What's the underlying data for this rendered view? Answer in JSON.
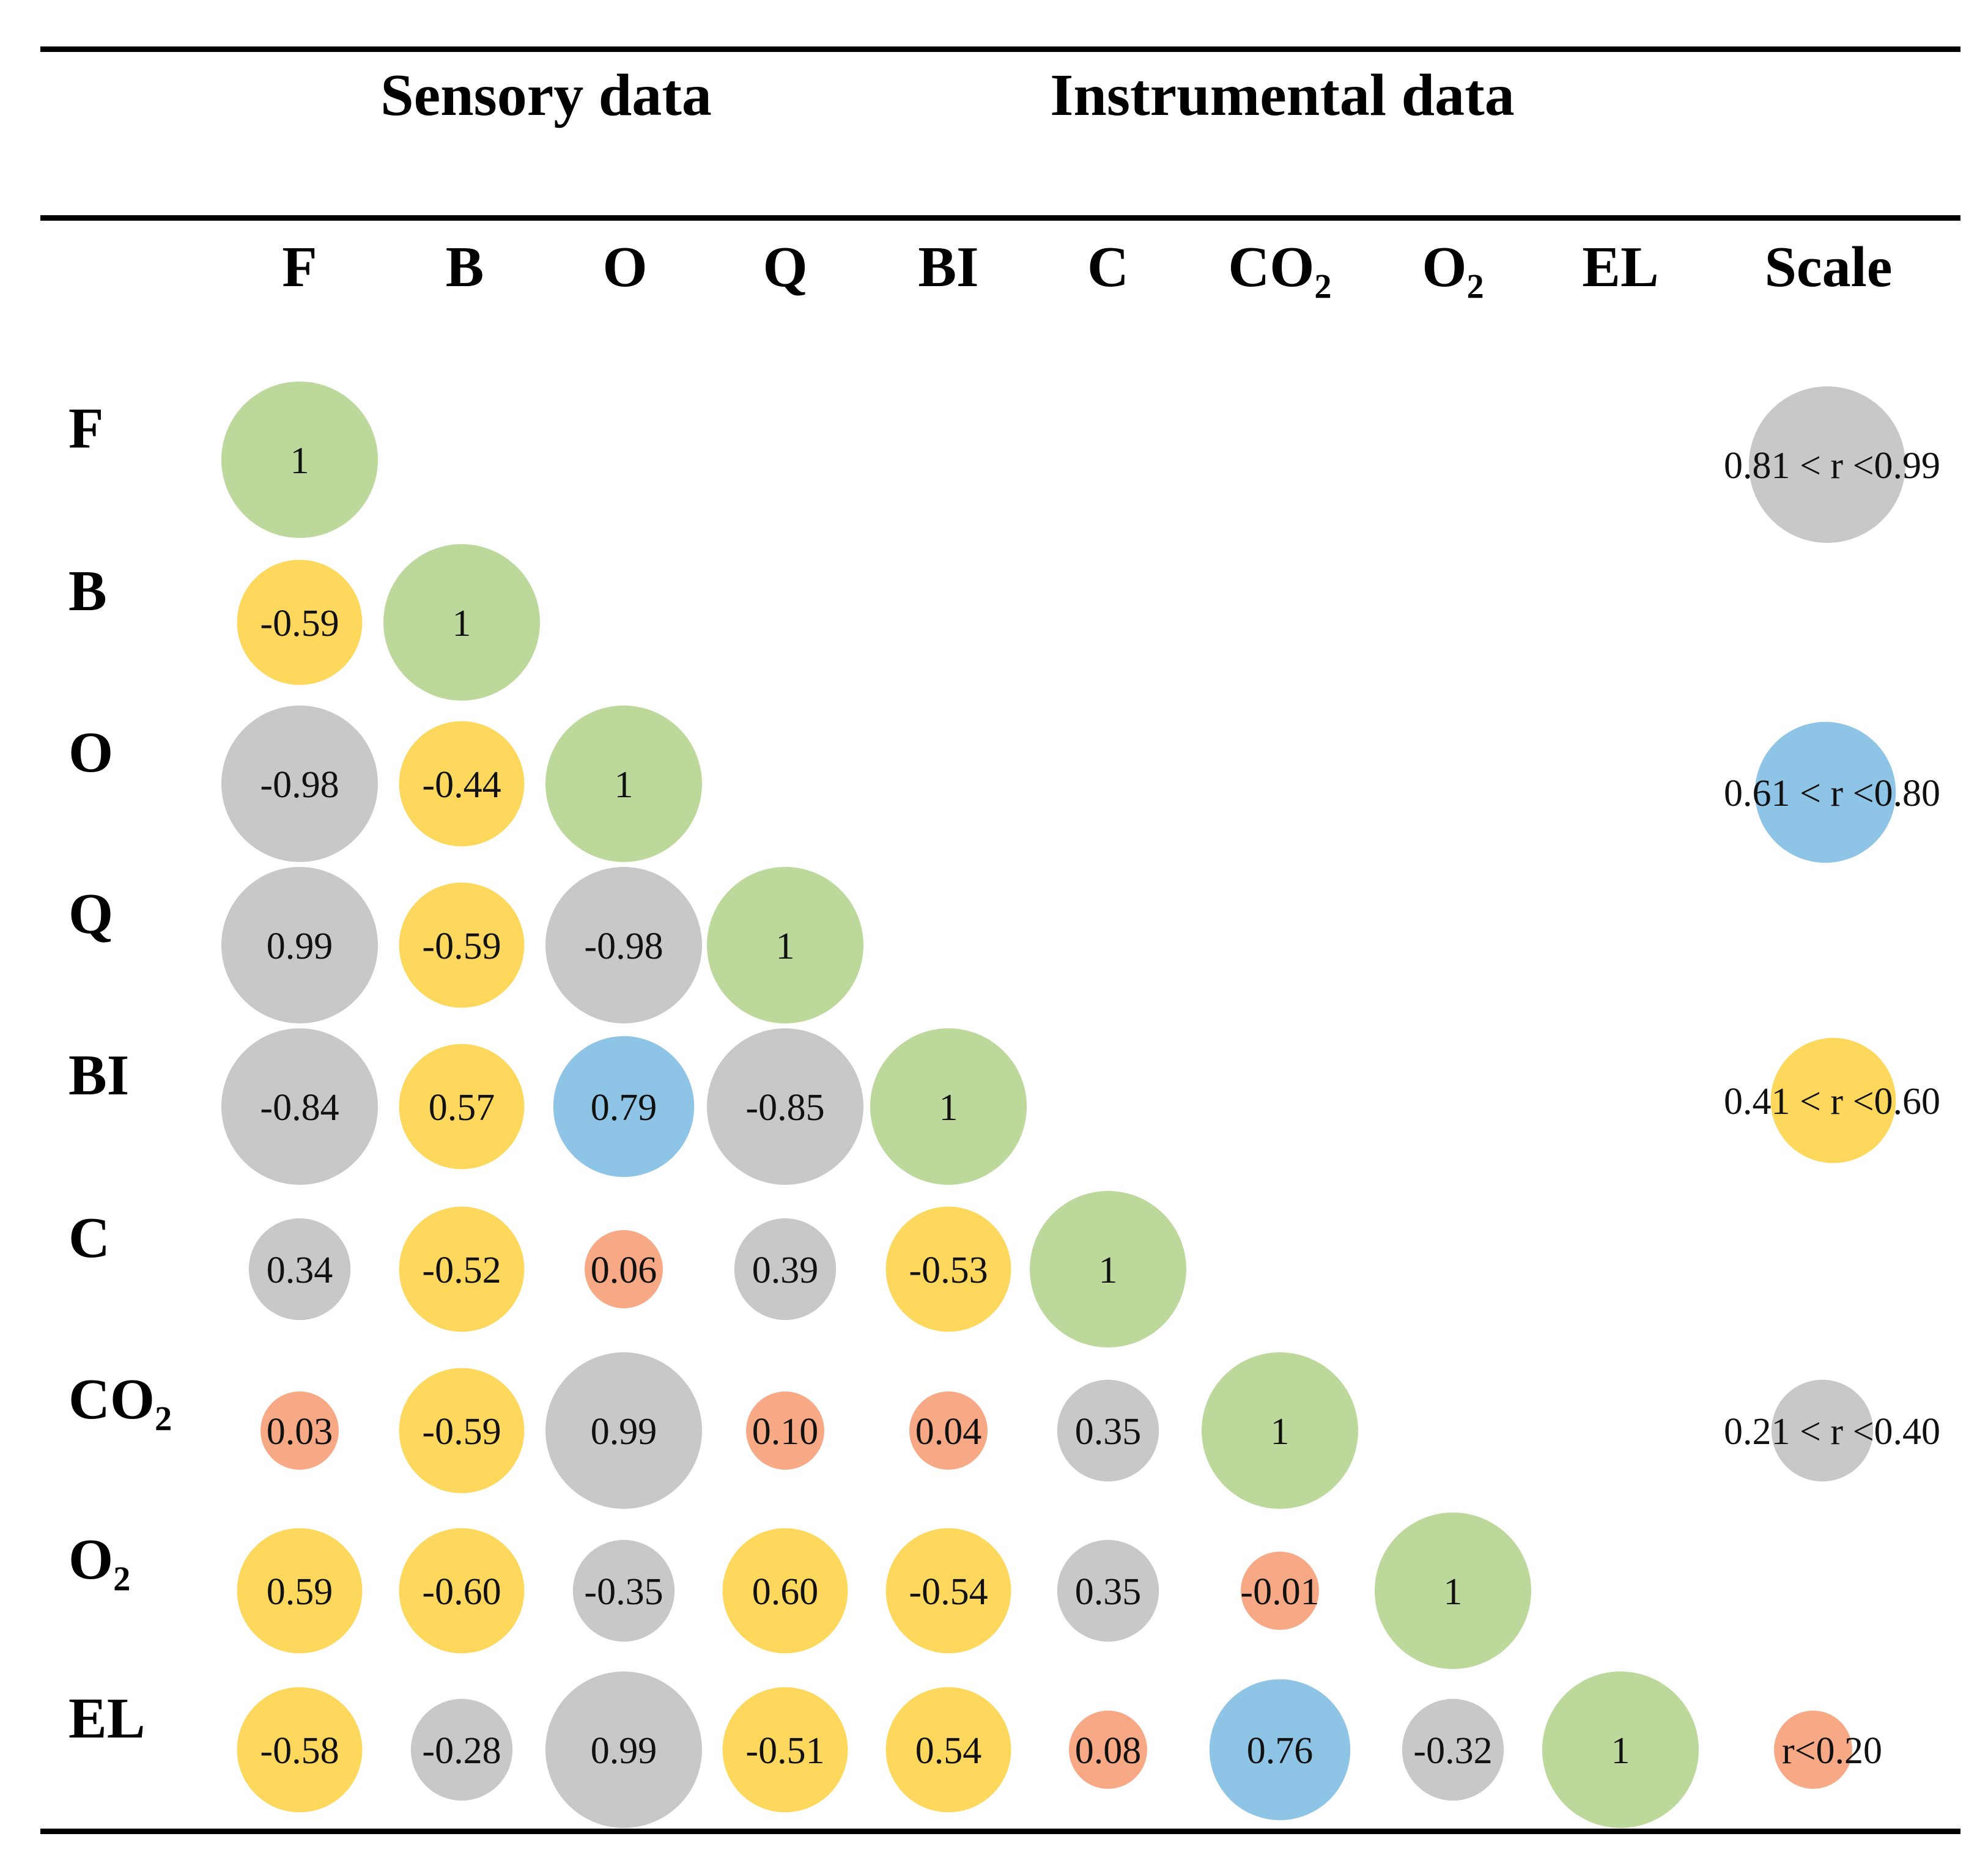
{
  "chart_data": {
    "type": "heatmap",
    "subtype": "bubble-correlation-matrix",
    "group_labels": {
      "sensory": "Sensory data",
      "instrumental": "Instrumental data"
    },
    "variables": [
      "F",
      "B",
      "O",
      "Q",
      "BI",
      "C",
      "CO₂",
      "O₂",
      "EL"
    ],
    "scale_label": "Scale",
    "matrix": [
      [
        1
      ],
      [
        -0.59,
        1
      ],
      [
        -0.98,
        -0.44,
        1
      ],
      [
        0.99,
        -0.59,
        -0.98,
        1
      ],
      [
        -0.84,
        0.57,
        0.79,
        -0.85,
        1
      ],
      [
        0.34,
        -0.52,
        0.06,
        0.39,
        -0.53,
        1
      ],
      [
        0.03,
        -0.59,
        0.99,
        0.1,
        0.04,
        0.35,
        1
      ],
      [
        0.59,
        -0.6,
        -0.35,
        0.6,
        -0.54,
        0.35,
        -0.01,
        1
      ],
      [
        -0.58,
        -0.28,
        0.99,
        -0.51,
        0.54,
        0.08,
        0.76,
        -0.32,
        1
      ]
    ],
    "matrix_labels": [
      [
        "1"
      ],
      [
        "-0.59",
        "1"
      ],
      [
        "-0.98",
        "-0.44",
        "1"
      ],
      [
        "0.99",
        "-0.59",
        "-0.98",
        "1"
      ],
      [
        "-0.84",
        "0.57",
        "0.79",
        "-0.85",
        "1"
      ],
      [
        "0.34",
        "-0.52",
        "0.06",
        "0.39",
        "-0.53",
        "1"
      ],
      [
        "0.03",
        "-0.59",
        "0.99",
        "0.10",
        "0.04",
        "0.35",
        "1"
      ],
      [
        "0.59",
        "-0.60",
        "-0.35",
        "0.60",
        "-0.54",
        "0.35",
        "-0.01",
        "1"
      ],
      [
        "-0.58",
        "-0.28",
        "0.99",
        "-0.51",
        "0.54",
        "0.08",
        "0.76",
        "-0.32",
        "1"
      ]
    ],
    "legend": [
      {
        "label": "0.81 < r <0.99",
        "min": 0.81,
        "max": 0.99,
        "color": "#c8c8c8",
        "size": 1.0
      },
      {
        "label": "0.61 < r <0.80",
        "min": 0.61,
        "max": 0.8,
        "color": "#8ec4e6",
        "size": 0.9
      },
      {
        "label": "0.41 < r <0.60",
        "min": 0.41,
        "max": 0.6,
        "color": "#fdd85d",
        "size": 0.8
      },
      {
        "label": "0.21 < r <0.40",
        "min": 0.21,
        "max": 0.4,
        "color": "#c8c8c8",
        "size": 0.65
      },
      {
        "label": "r<0.20",
        "min": 0.0,
        "max": 0.2,
        "color": "#f7a885",
        "size": 0.5
      }
    ],
    "diagonal": {
      "color": "#bcd89a",
      "size": 1.0
    }
  }
}
